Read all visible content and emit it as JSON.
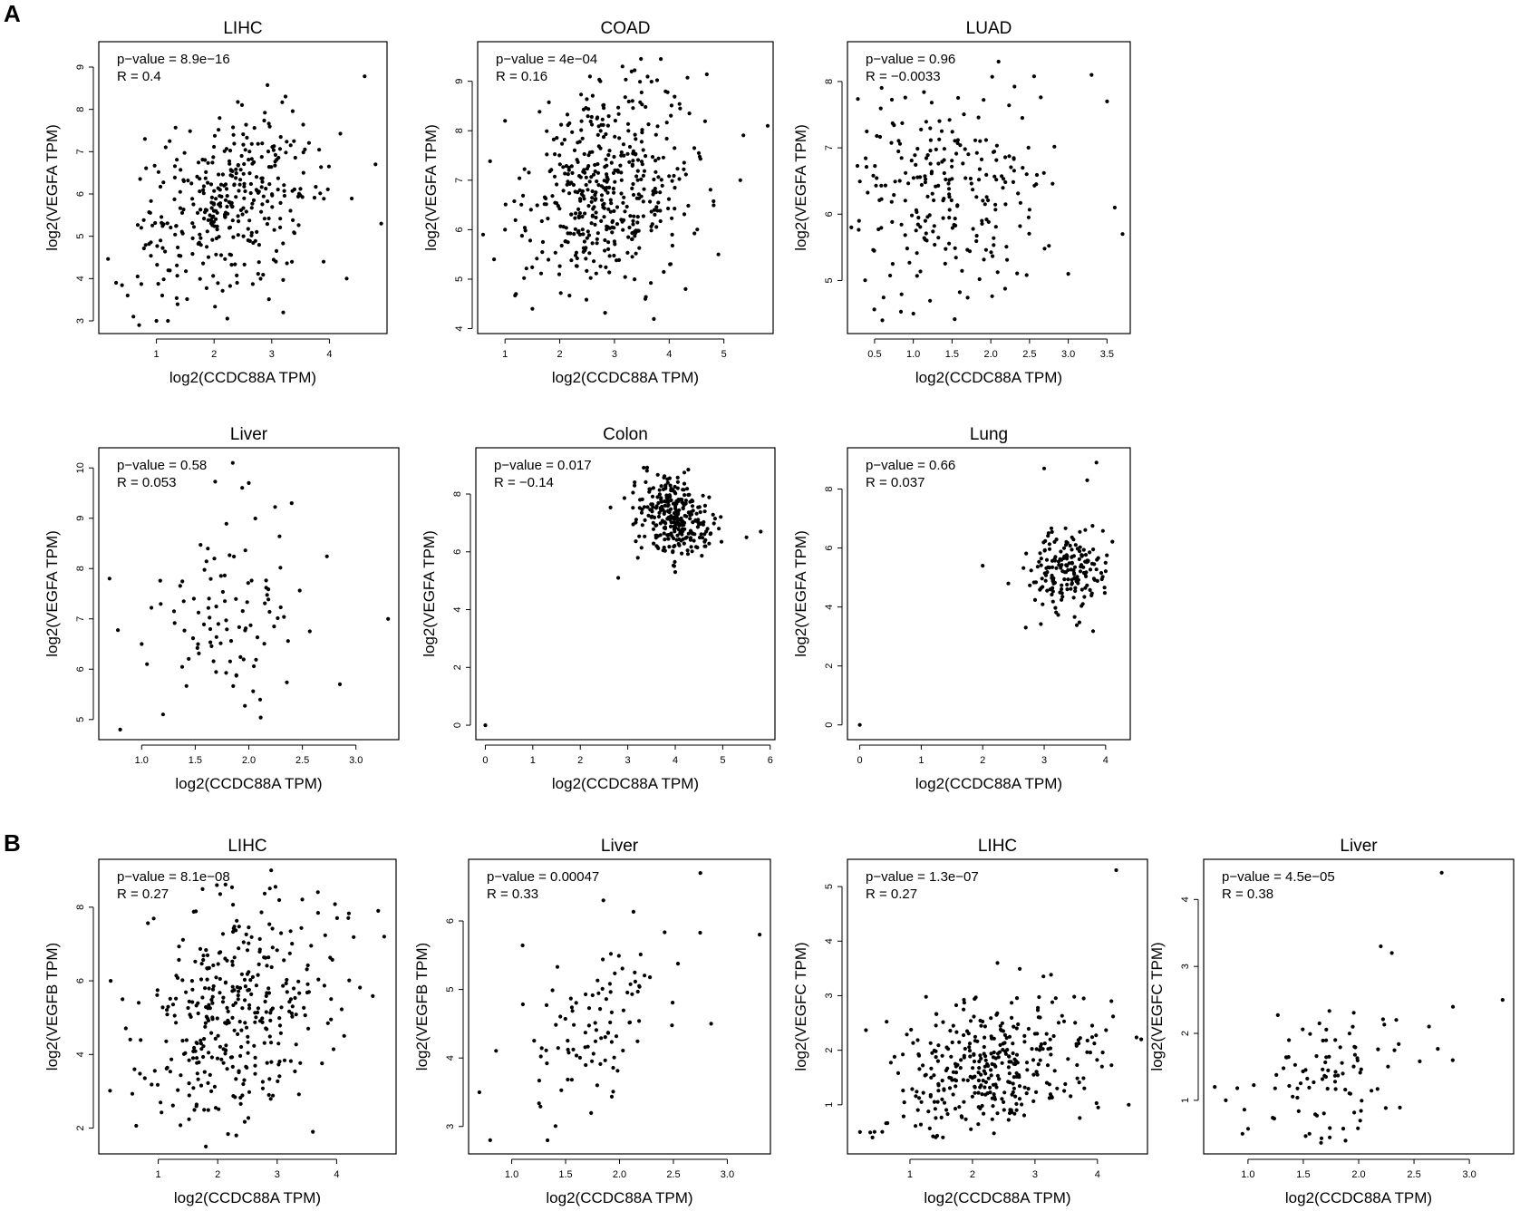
{
  "figure": {
    "panel_a_label": "A",
    "panel_b_label": "B"
  },
  "chart_data": [
    {
      "type": "scatter",
      "panel": "A",
      "title": "LIHC",
      "xlabel": "log2(CCDC88A TPM)",
      "ylabel": "log2(VEGFA TPM)",
      "annotation": [
        "p−value = 8.9e−16",
        "R = 0.4"
      ],
      "xlim": [
        0.0,
        5.0
      ],
      "ylim": [
        2.7,
        9.6
      ],
      "xticks": [
        "1",
        "2",
        "3",
        "4"
      ],
      "yticks": [
        "3",
        "4",
        "5",
        "6",
        "7",
        "8",
        "9"
      ],
      "n": 370,
      "x_center": 2.3,
      "x_sd": 0.8,
      "y_center": 5.8,
      "y_sd": 1.1,
      "r": 0.4,
      "x": [
        0.3,
        0.5,
        0.6,
        0.7,
        0.8,
        1.0,
        1.1,
        1.2,
        3.2,
        4.3,
        4.8,
        4.9,
        3.9,
        2.4
      ],
      "y": [
        3.9,
        3.6,
        3.1,
        2.9,
        7.3,
        3.0,
        3.6,
        3.0,
        3.2,
        4.0,
        6.7,
        5.3,
        4.4,
        3.9
      ]
    },
    {
      "type": "scatter",
      "panel": "A",
      "title": "COAD",
      "xlabel": "log2(CCDC88A TPM)",
      "ylabel": "log2(VEGFA TPM)",
      "annotation": [
        "p−value = 4e−04",
        "R = 0.16"
      ],
      "xlim": [
        0.5,
        5.9
      ],
      "ylim": [
        3.9,
        9.8
      ],
      "xticks": [
        "1",
        "2",
        "3",
        "4",
        "5"
      ],
      "yticks": [
        "4",
        "5",
        "6",
        "7",
        "8",
        "9"
      ],
      "n": 470,
      "x_center": 2.9,
      "x_sd": 0.75,
      "y_center": 6.9,
      "y_sd": 1.1,
      "r": 0.16,
      "x": [
        0.6,
        0.8,
        1.0,
        1.2,
        1.5,
        5.8,
        5.3,
        4.9,
        4.3,
        1.0
      ],
      "y": [
        5.9,
        5.4,
        8.2,
        4.7,
        4.4,
        8.1,
        7.0,
        5.5,
        4.8,
        6.0
      ]
    },
    {
      "type": "scatter",
      "panel": "A",
      "title": "LUAD",
      "xlabel": "log2(CCDC88A TPM)",
      "ylabel": "log2(VEGFA TPM)",
      "annotation": [
        "p−value = 0.96",
        "R = −0.0033"
      ],
      "xlim": [
        0.15,
        3.8
      ],
      "ylim": [
        4.2,
        8.6
      ],
      "xticks": [
        "0.5",
        "1.0",
        "1.5",
        "2.0",
        "2.5",
        "3.0",
        "3.5"
      ],
      "yticks": [
        "5",
        "6",
        "7",
        "8"
      ],
      "n": 250,
      "x_center": 1.45,
      "x_sd": 0.65,
      "y_center": 6.3,
      "y_sd": 0.75,
      "r": 0.0,
      "x": [
        0.2,
        0.3,
        3.3,
        3.5,
        3.7,
        3.6,
        3.0,
        0.6,
        1.0,
        2.1
      ],
      "y": [
        5.8,
        5.9,
        8.1,
        7.7,
        5.7,
        6.1,
        5.1,
        4.4,
        4.5,
        8.3
      ]
    },
    {
      "type": "scatter",
      "panel": "A",
      "title": "Liver",
      "xlabel": "log2(CCDC88A TPM)",
      "ylabel": "log2(VEGFA TPM)",
      "annotation": [
        "p−value = 0.58",
        "R = 0.053"
      ],
      "xlim": [
        0.6,
        3.4
      ],
      "ylim": [
        4.6,
        10.4
      ],
      "xticks": [
        "1.0",
        "1.5",
        "2.0",
        "2.5",
        "3.0"
      ],
      "yticks": [
        "5",
        "6",
        "7",
        "8",
        "9",
        "10"
      ],
      "n": 105,
      "x_center": 1.8,
      "x_sd": 0.35,
      "y_center": 7.2,
      "y_sd": 0.85,
      "r": 0.05,
      "x": [
        0.7,
        0.8,
        1.0,
        1.05,
        1.2,
        3.3,
        2.85,
        1.85,
        2.0,
        2.4
      ],
      "y": [
        7.8,
        4.8,
        6.5,
        6.1,
        5.1,
        7.0,
        5.7,
        10.1,
        9.7,
        9.3
      ]
    },
    {
      "type": "scatter",
      "panel": "A",
      "title": "Colon",
      "xlabel": "log2(CCDC88A TPM)",
      "ylabel": "log2(VEGFA TPM)",
      "annotation": [
        "p−value = 0.017",
        "R = −0.14"
      ],
      "xlim": [
        -0.2,
        6.1
      ],
      "ylim": [
        -0.5,
        9.6
      ],
      "xticks": [
        "0",
        "1",
        "2",
        "3",
        "4",
        "5",
        "6"
      ],
      "yticks": [
        "0",
        "2",
        "4",
        "6",
        "8"
      ],
      "n": 300,
      "x_center": 4.0,
      "x_sd": 0.38,
      "y_center": 7.2,
      "y_sd": 0.7,
      "r": -0.14,
      "x": [
        0.0,
        2.8,
        4.0,
        5.8,
        5.5
      ],
      "y": [
        0.0,
        5.1,
        5.3,
        6.7,
        6.5
      ]
    },
    {
      "type": "scatter",
      "panel": "A",
      "title": "Lung",
      "xlabel": "log2(CCDC88A TPM)",
      "ylabel": "log2(VEGFA TPM)",
      "annotation": [
        "p−value = 0.66",
        "R = 0.037"
      ],
      "xlim": [
        -0.2,
        4.4
      ],
      "ylim": [
        -0.5,
        9.4
      ],
      "xticks": [
        "0",
        "1",
        "2",
        "3",
        "4"
      ],
      "yticks": [
        "0",
        "2",
        "4",
        "6",
        "8"
      ],
      "n": 190,
      "x_center": 3.4,
      "x_sd": 0.32,
      "y_center": 5.3,
      "y_sd": 0.7,
      "r": 0.04,
      "x": [
        0.0,
        2.7,
        3.0,
        3.85,
        3.7,
        2.0
      ],
      "y": [
        0.0,
        3.3,
        8.7,
        8.9,
        8.3,
        5.4
      ]
    },
    {
      "type": "scatter",
      "panel": "B",
      "title": "LIHC",
      "xlabel": "log2(CCDC88A TPM)",
      "ylabel": "log2(VEGFB TPM)",
      "annotation": [
        "p−value = 8.1e−08",
        "R = 0.27"
      ],
      "xlim": [
        0.0,
        5.0
      ],
      "ylim": [
        1.3,
        9.3
      ],
      "xticks": [
        "1",
        "2",
        "3",
        "4"
      ],
      "yticks": [
        "2",
        "4",
        "6",
        "8"
      ],
      "n": 370,
      "x_center": 2.3,
      "x_sd": 0.8,
      "y_center": 5.1,
      "y_sd": 1.6,
      "r": 0.27,
      "x": [
        0.2,
        0.4,
        0.6,
        2.9,
        4.7,
        4.8,
        3.6,
        1.8
      ],
      "y": [
        6.0,
        5.5,
        3.6,
        9.0,
        7.9,
        7.2,
        1.9,
        1.5
      ]
    },
    {
      "type": "scatter",
      "panel": "B",
      "title": "Liver",
      "xlabel": "log2(CCDC88A TPM)",
      "ylabel": "log2(VEGFB TPM)",
      "annotation": [
        "p−value = 0.00047",
        "R = 0.33"
      ],
      "xlim": [
        0.6,
        3.4
      ],
      "ylim": [
        2.6,
        6.9
      ],
      "xticks": [
        "1.0",
        "1.5",
        "2.0",
        "2.5",
        "3.0"
      ],
      "yticks": [
        "3",
        "4",
        "5",
        "6"
      ],
      "n": 105,
      "x_center": 1.75,
      "x_sd": 0.35,
      "y_center": 4.5,
      "y_sd": 0.65,
      "r": 0.33,
      "x": [
        0.7,
        0.8,
        2.75,
        3.3,
        2.85,
        1.85
      ],
      "y": [
        3.5,
        2.8,
        6.7,
        5.8,
        4.5,
        6.3
      ]
    },
    {
      "type": "scatter",
      "panel": "B",
      "title": "LIHC",
      "xlabel": "log2(CCDC88A TPM)",
      "ylabel": "log2(VEGFC TPM)",
      "annotation": [
        "p−value = 1.3e−07",
        "R = 0.27"
      ],
      "xlim": [
        0.0,
        4.8
      ],
      "ylim": [
        0.1,
        5.5
      ],
      "xticks": [
        "1",
        "2",
        "3",
        "4"
      ],
      "yticks": [
        "1",
        "2",
        "3",
        "4",
        "5"
      ],
      "n": 370,
      "x_center": 2.3,
      "x_sd": 0.8,
      "y_center": 1.65,
      "y_sd": 0.65,
      "r": 0.27,
      "x": [
        0.2,
        0.4,
        4.3,
        4.7,
        4.5,
        2.4
      ],
      "y": [
        0.5,
        0.4,
        5.3,
        2.2,
        1.0,
        3.6
      ]
    },
    {
      "type": "scatter",
      "panel": "B",
      "title": "Liver",
      "xlabel": "log2(CCDC88A TPM)",
      "ylabel": "log2(VEGFC TPM)",
      "annotation": [
        "p−value = 4.5e−05",
        "R = 0.38"
      ],
      "xlim": [
        0.6,
        3.4
      ],
      "ylim": [
        0.2,
        4.6
      ],
      "xticks": [
        "1.0",
        "1.5",
        "2.0",
        "2.5",
        "3.0"
      ],
      "yticks": [
        "1",
        "2",
        "3",
        "4"
      ],
      "n": 105,
      "x_center": 1.75,
      "x_sd": 0.35,
      "y_center": 1.35,
      "y_sd": 0.55,
      "r": 0.38,
      "x": [
        0.7,
        0.8,
        0.95,
        2.75,
        3.3,
        2.85,
        2.2,
        2.3
      ],
      "y": [
        1.2,
        1.0,
        0.5,
        4.4,
        2.5,
        1.6,
        3.3,
        3.2
      ]
    }
  ]
}
